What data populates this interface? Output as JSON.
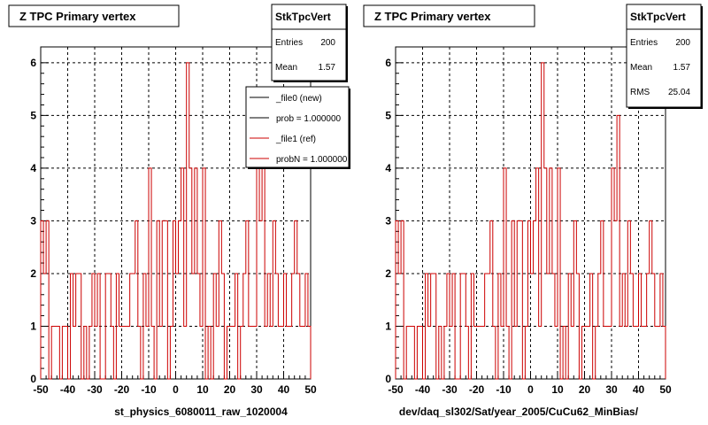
{
  "chart_data": [
    {
      "type": "histogram",
      "title": "Z TPC Primary vertex",
      "xlabel": "st_physics_6080011_raw_1020004",
      "ylabel": "",
      "xlim": [
        -50,
        50
      ],
      "ylim": [
        0,
        6.3
      ],
      "xticks": [
        "-50",
        "-40",
        "-30",
        "-20",
        "-10",
        "0",
        "10",
        "20",
        "30",
        "40",
        "50"
      ],
      "yticks": [
        "0",
        "1",
        "2",
        "3",
        "4",
        "5",
        "6"
      ],
      "grid": true,
      "stats": {
        "name": "StkTpcVert",
        "rows": [
          {
            "label": "Entries",
            "value": "200"
          },
          {
            "label": "Mean",
            "value": "1.57"
          }
        ]
      },
      "legend": {
        "placement": "top-right",
        "entries": [
          {
            "label": "_file0 (new)",
            "color": "#000000"
          },
          {
            "label": "prob = 1.000000",
            "color": "#000000"
          },
          {
            "label": "_file1 (ref)",
            "color": "#cc0000"
          },
          {
            "label": "probN = 1.000000",
            "color": "#cc0000"
          }
        ]
      },
      "series": [
        {
          "color": "#cc0000",
          "bin_width": 1,
          "x_start": -50,
          "values": [
            3,
            2,
            3,
            0,
            1,
            1,
            1,
            0,
            1,
            1,
            0,
            2,
            1,
            2,
            2,
            0,
            1,
            0,
            1,
            2,
            1,
            2,
            0,
            0,
            2,
            2,
            1,
            0,
            2,
            1,
            1,
            1,
            1,
            2,
            2,
            3,
            1,
            0,
            2,
            1,
            4,
            1,
            0,
            3,
            1,
            3,
            3,
            0,
            1,
            3,
            2,
            3,
            4,
            1,
            6,
            4,
            2,
            4,
            2,
            1,
            4,
            0,
            1,
            0,
            2,
            1,
            3,
            2,
            0,
            1,
            1,
            1,
            2,
            0,
            1,
            2,
            3,
            1,
            1,
            1,
            4,
            3,
            5,
            1,
            2,
            1,
            3,
            2,
            1,
            1,
            2,
            1,
            1,
            2,
            3,
            2,
            1,
            1,
            2,
            1
          ]
        }
      ]
    },
    {
      "type": "histogram",
      "title": "Z TPC Primary vertex",
      "xlabel": "dev/daq_sl302/Sat/year_2005/CuCu62_MinBias/",
      "ylabel": "",
      "xlim": [
        -50,
        50
      ],
      "ylim": [
        0,
        6.3
      ],
      "xticks": [
        "-50",
        "-40",
        "-30",
        "-20",
        "-10",
        "0",
        "10",
        "20",
        "30",
        "40",
        "50"
      ],
      "yticks": [
        "0",
        "1",
        "2",
        "3",
        "4",
        "5",
        "6"
      ],
      "grid": true,
      "stats": {
        "name": "StkTpcVert",
        "rows": [
          {
            "label": "Entries",
            "value": "200"
          },
          {
            "label": "Mean",
            "value": "1.57"
          },
          {
            "label": "RMS",
            "value": "25.04"
          }
        ]
      },
      "series": [
        {
          "color": "#cc0000",
          "bin_width": 1,
          "x_start": -50,
          "values": [
            3,
            2,
            3,
            0,
            1,
            1,
            1,
            0,
            1,
            1,
            0,
            2,
            1,
            2,
            2,
            0,
            1,
            0,
            1,
            2,
            1,
            2,
            0,
            0,
            2,
            2,
            1,
            0,
            2,
            1,
            1,
            1,
            1,
            2,
            2,
            3,
            1,
            0,
            2,
            1,
            4,
            1,
            0,
            3,
            1,
            3,
            3,
            0,
            1,
            3,
            2,
            3,
            4,
            1,
            6,
            4,
            2,
            4,
            2,
            1,
            4,
            0,
            1,
            0,
            2,
            1,
            3,
            2,
            0,
            1,
            1,
            1,
            2,
            0,
            1,
            2,
            3,
            1,
            1,
            1,
            4,
            3,
            5,
            1,
            2,
            1,
            3,
            2,
            1,
            1,
            2,
            1,
            1,
            2,
            3,
            2,
            1,
            1,
            2,
            1
          ]
        }
      ]
    }
  ]
}
